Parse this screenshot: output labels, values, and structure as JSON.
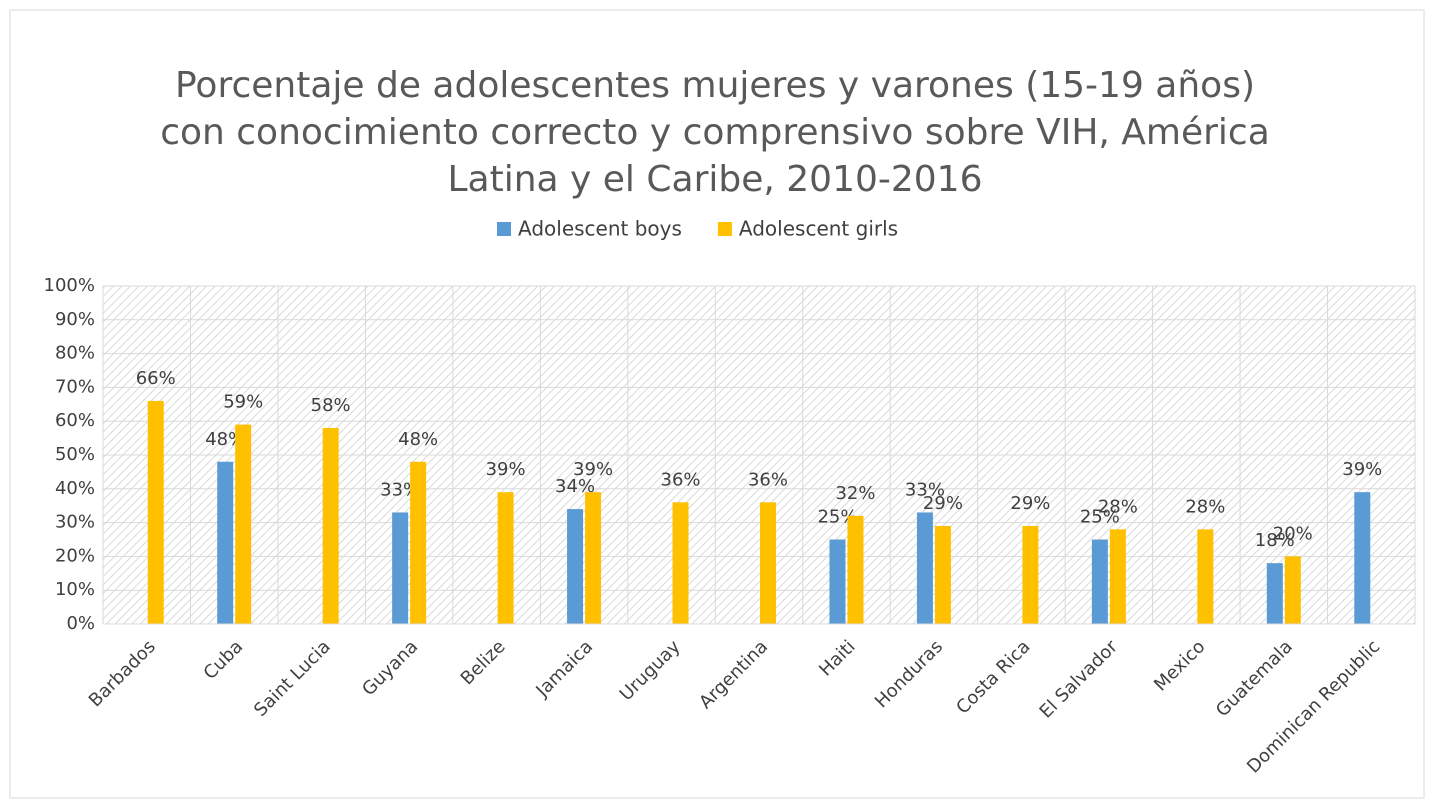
{
  "chart_data": {
    "type": "bar",
    "title": "Porcentaje de adolescentes mujeres y varones (15-19 años) con conocimiento correcto y comprensivo sobre VIH, América Latina y el Caribe, 2010-2016",
    "categories": [
      "Barbados",
      "Cuba",
      "Saint Lucia",
      "Guyana",
      "Belize",
      "Jamaica",
      "Uruguay",
      "Argentina",
      "Haiti",
      "Honduras",
      "Costa Rica",
      "El Salvador",
      "Mexico",
      "Guatemala",
      "Dominican Republic"
    ],
    "series": [
      {
        "name": "Adolescent boys",
        "color": "#5b9bd5",
        "values": [
          null,
          48,
          null,
          33,
          null,
          34,
          null,
          null,
          25,
          33,
          null,
          25,
          null,
          18,
          39
        ],
        "value_labels": [
          null,
          "48%",
          null,
          "33%",
          null,
          "34%",
          null,
          null,
          "25%",
          "33%",
          null,
          "25%",
          null,
          "18%",
          "39%"
        ]
      },
      {
        "name": "Adolescent girls",
        "color": "#ffc000",
        "values": [
          66,
          59,
          58,
          48,
          39,
          39,
          36,
          36,
          32,
          29,
          29,
          28,
          28,
          20,
          null
        ],
        "value_labels": [
          "66%",
          "59%",
          "58%",
          "48%",
          "39%",
          "39%",
          "36%",
          "36%",
          "32%",
          "29%",
          "29%",
          "28%",
          "28%",
          "20%",
          null
        ]
      }
    ],
    "ylim": [
      0,
      100
    ],
    "yticks": [
      {
        "value": 0,
        "label": "0%"
      },
      {
        "value": 10,
        "label": "10%"
      },
      {
        "value": 20,
        "label": "20%"
      },
      {
        "value": 30,
        "label": "30%"
      },
      {
        "value": 40,
        "label": "40%"
      },
      {
        "value": 50,
        "label": "50%"
      },
      {
        "value": 60,
        "label": "60%"
      },
      {
        "value": 70,
        "label": "70%"
      },
      {
        "value": 80,
        "label": "80%"
      },
      {
        "value": 90,
        "label": "90%"
      },
      {
        "value": 100,
        "label": "100%"
      }
    ],
    "grid": true,
    "legend": "top"
  }
}
